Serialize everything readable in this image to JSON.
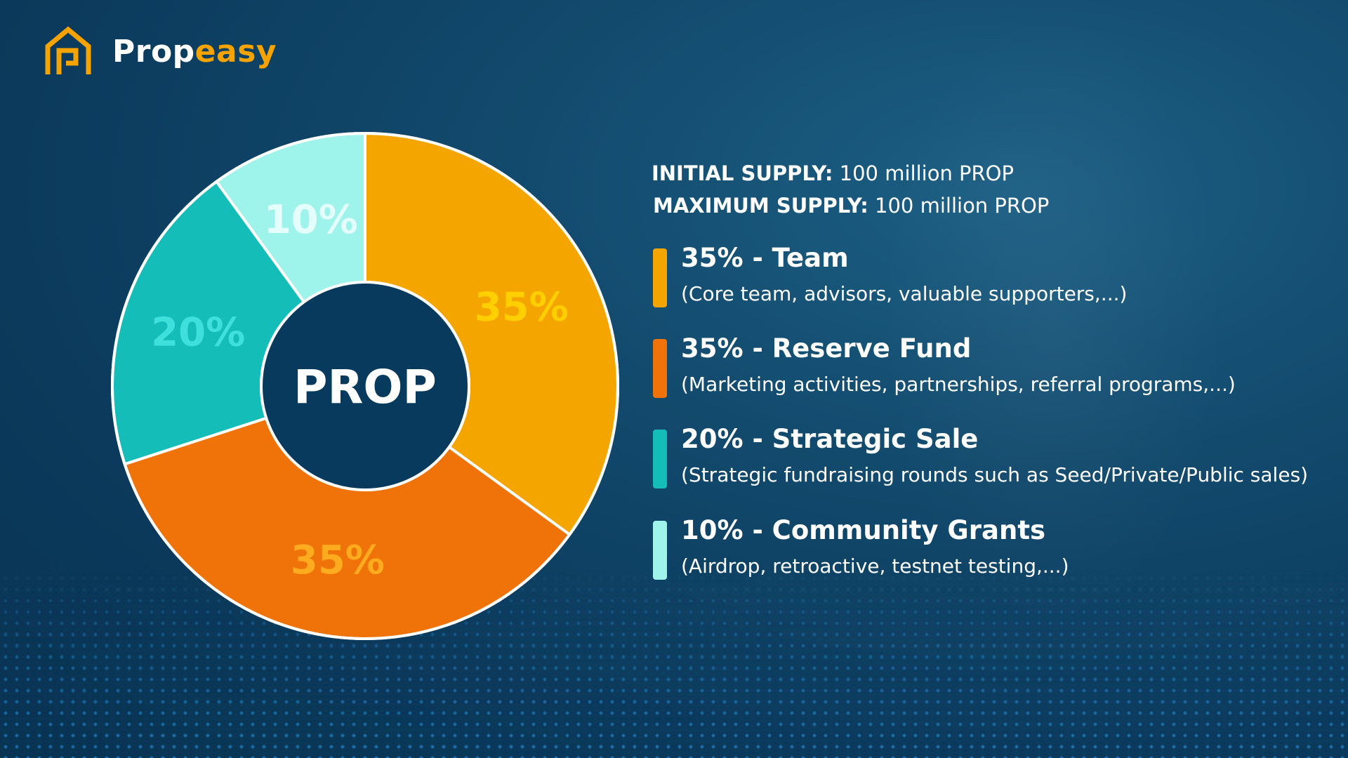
{
  "brand": {
    "name_part1": "Prop",
    "name_part2": "easy",
    "logo_icon": "house-p-icon",
    "accent_color": "#f5a300"
  },
  "supply": {
    "initial_label": "INITIAL SUPPLY:",
    "initial_value": "100 million PROP",
    "max_label": "MAXIMUM SUPPLY:",
    "max_value": "100 million PROP"
  },
  "legend": [
    {
      "title": "35% - Team",
      "desc": "(Core team, advisors, valuable supporters,...)",
      "color": "#f5a500"
    },
    {
      "title": "35% - Reserve Fund",
      "desc": "(Marketing activities, partnerships, referral programs,...)",
      "color": "#ef7308"
    },
    {
      "title": "20% - Strategic Sale",
      "desc": "(Strategic fundraising rounds such as Seed/Private/Public sales)",
      "color": "#14bdb8"
    },
    {
      "title": "10% - Community Grants",
      "desc": "(Airdrop, retroactive, testnet testing,...)",
      "color": "#9ef4ea"
    }
  ],
  "chart_data": {
    "type": "pie",
    "variant": "donut",
    "center_label": "PROP",
    "categories": [
      "Team",
      "Reserve Fund",
      "Strategic Sale",
      "Community Grants"
    ],
    "values": [
      35,
      35,
      20,
      10
    ],
    "labels": [
      "35%",
      "35%",
      "20%",
      "10%"
    ],
    "colors": [
      "#f5a500",
      "#ef7308",
      "#14bdb8",
      "#9ef4ea"
    ],
    "label_colors": [
      "#ffcf00",
      "#ffab1f",
      "#3fe0dc",
      "#e4fffb"
    ],
    "start_angle_deg": 0,
    "direction": "clockwise"
  }
}
